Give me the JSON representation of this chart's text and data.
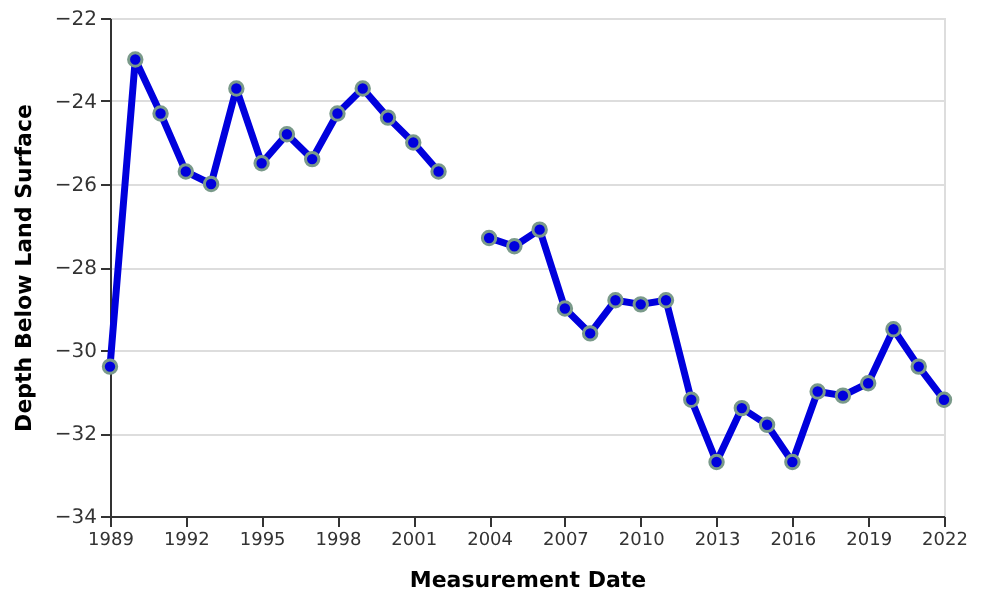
{
  "chart_data": {
    "type": "line",
    "xlabel": "Measurement Date",
    "ylabel": "Depth Below Land Surface",
    "x": [
      1989,
      1990,
      1991,
      1992,
      1993,
      1994,
      1995,
      1996,
      1997,
      1998,
      1999,
      2000,
      2001,
      2002,
      2003,
      2004,
      2005,
      2006,
      2007,
      2008,
      2009,
      2010,
      2011,
      2012,
      2013,
      2014,
      2015,
      2016,
      2017,
      2018,
      2019,
      2020,
      2021,
      2022
    ],
    "series": [
      {
        "color": "#0000dd",
        "values": [
          -30.4,
          -23.0,
          -24.3,
          -25.7,
          -26.0,
          -23.7,
          -25.5,
          -24.8,
          -25.4,
          -24.3,
          -23.7,
          -24.4,
          -25.0,
          -25.7,
          null,
          -27.3,
          -27.5,
          -27.1,
          -29.0,
          -29.6,
          -28.8,
          -28.9,
          -28.8,
          -31.2,
          -32.7,
          -31.4,
          -31.8,
          -32.7,
          -31.0,
          -31.1,
          -30.8,
          -29.5,
          -30.4,
          -31.2
        ]
      }
    ],
    "xlim": [
      1989,
      2022
    ],
    "xticks": [
      1989,
      1992,
      1995,
      1998,
      2001,
      2004,
      2007,
      2010,
      2013,
      2016,
      2019,
      2022
    ],
    "ylim": [
      -34,
      -22
    ],
    "yticks": [
      -34,
      -32,
      -30,
      -28,
      -26,
      -24,
      -22
    ],
    "grid": "y",
    "marker": "circle",
    "line_style": "solid",
    "legend": false
  }
}
